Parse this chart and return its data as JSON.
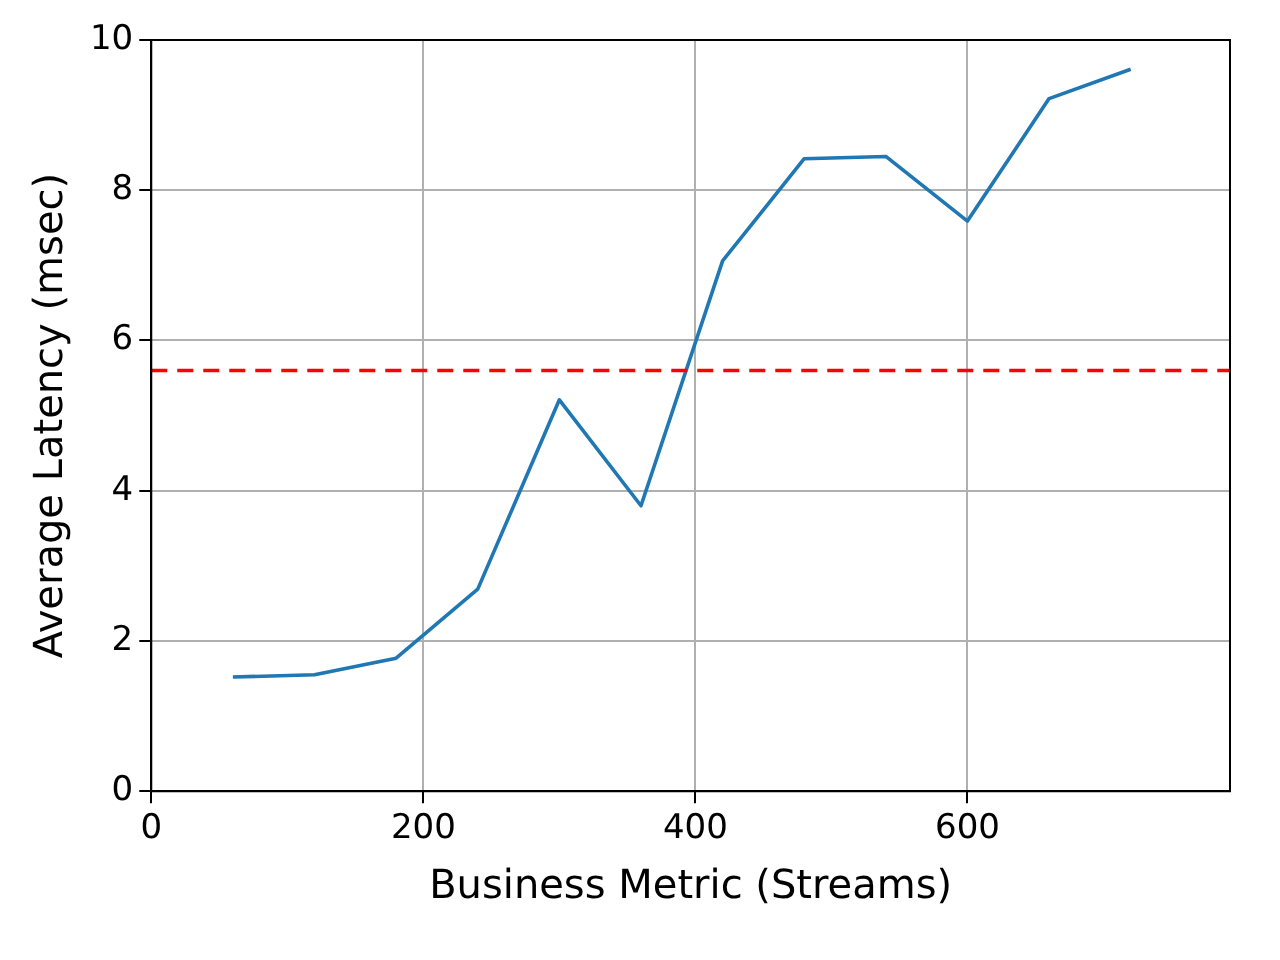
{
  "chart_data": {
    "type": "line",
    "xlabel": "Business Metric (Streams)",
    "ylabel": "Average Latency (msec)",
    "x": [
      60,
      120,
      180,
      240,
      300,
      360,
      420,
      480,
      540,
      600,
      660,
      720
    ],
    "series": [
      {
        "color": "#1f77b4",
        "values": [
          1.52,
          1.55,
          1.77,
          2.69,
          5.21,
          3.8,
          7.06,
          8.42,
          8.45,
          7.59,
          9.22,
          9.61
        ]
      }
    ],
    "xlim": [
      0,
      793
    ],
    "xticks": [
      0,
      200,
      400,
      600
    ],
    "ylim": [
      0,
      10
    ],
    "yticks": [
      0,
      2,
      4,
      6,
      8,
      10
    ],
    "ref_lines": [
      {
        "axis": "y",
        "value": 5.6,
        "color": "#ff0000",
        "line_style": "dashed"
      }
    ],
    "grid": true,
    "legend": false,
    "marker": "none",
    "line_style": "solid"
  }
}
